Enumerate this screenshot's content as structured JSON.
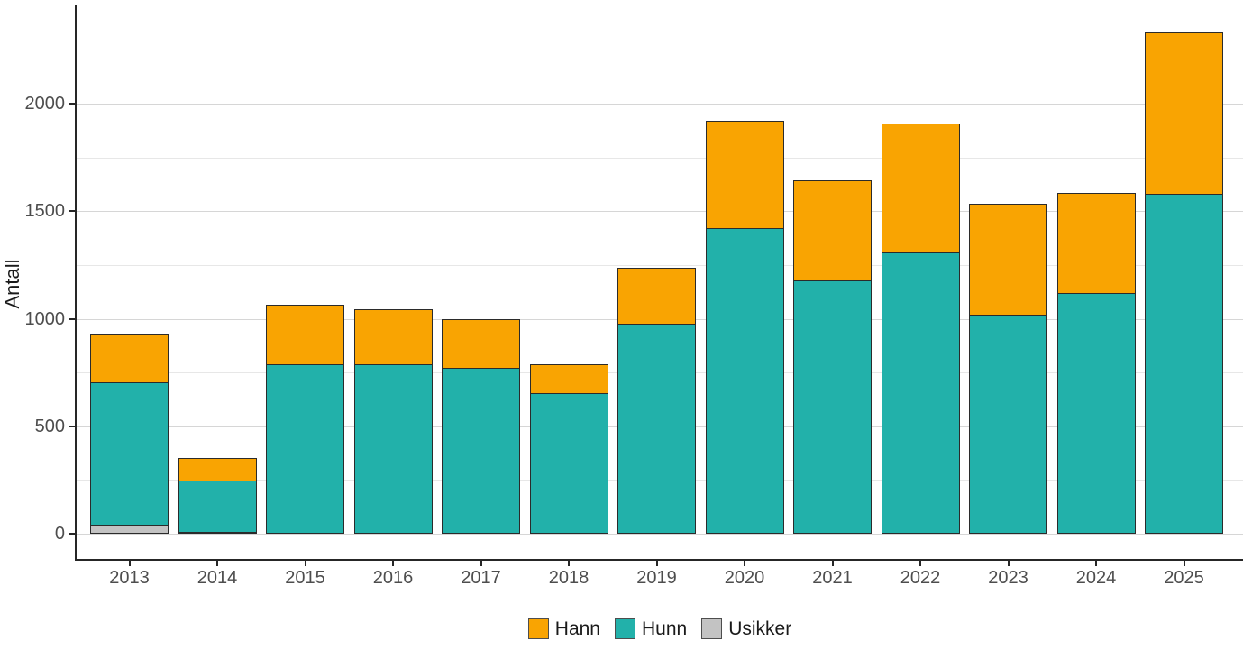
{
  "chart_data": {
    "type": "bar",
    "stacked": true,
    "ylabel": "Antall",
    "categories": [
      "2013",
      "2014",
      "2015",
      "2016",
      "2017",
      "2018",
      "2019",
      "2020",
      "2021",
      "2022",
      "2023",
      "2024",
      "2025"
    ],
    "series": [
      {
        "name": "Hann",
        "color": "#f9a402",
        "values": [
          225,
          110,
          280,
          260,
          230,
          140,
          265,
          505,
          470,
          605,
          520,
          470,
          755
        ]
      },
      {
        "name": "Hunn",
        "color": "#22b1aa",
        "values": [
          665,
          245,
          790,
          790,
          770,
          655,
          975,
          1420,
          1180,
          1310,
          1020,
          1120,
          1580
        ]
      },
      {
        "name": "Usikker",
        "color": "#c3c3c3",
        "values": [
          40,
          10,
          0,
          0,
          0,
          0,
          0,
          0,
          0,
          0,
          0,
          0,
          0
        ]
      }
    ],
    "stack_order_top_to_bottom": [
      "Hann",
      "Hunn",
      "Usikker"
    ],
    "totals": [
      930,
      365,
      1070,
      1050,
      1000,
      795,
      1240,
      1925,
      1650,
      1915,
      1540,
      1590,
      2335
    ],
    "yticks_major": [
      0,
      500,
      1000,
      1500,
      2000
    ],
    "yticks_minor": [
      250,
      750,
      1250,
      1750,
      2250
    ],
    "ylim": [
      0,
      2455
    ],
    "grid": true,
    "legend_position": "bottom"
  },
  "colors": {
    "axis_line": "#262626",
    "grid_major": "#d6d6d6",
    "grid_minor": "#e7e7e7",
    "tick_text": "#4d4d4d",
    "bar_border": "#2b2b2b",
    "background": "#ffffff"
  }
}
